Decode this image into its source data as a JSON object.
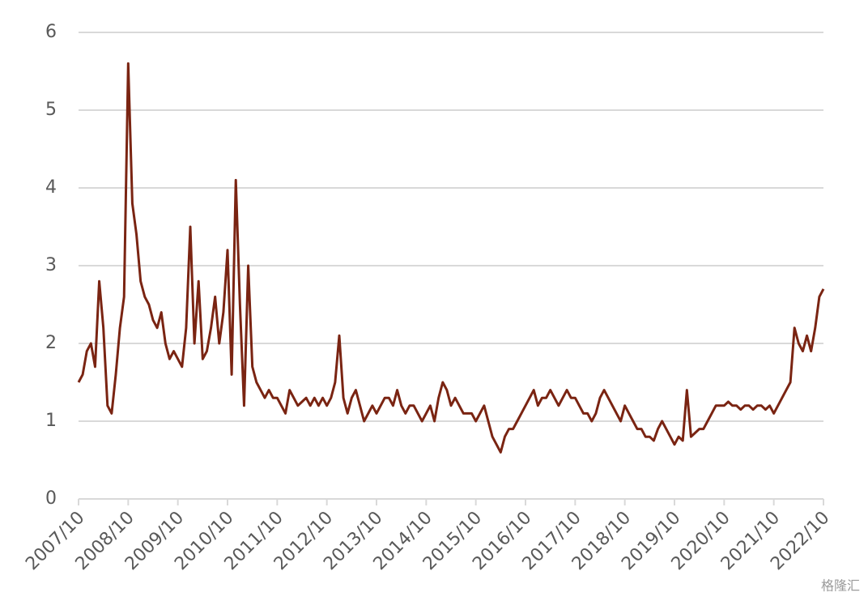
{
  "chart_data": {
    "type": "line",
    "x": [
      "2007/10",
      "2007/11",
      "2007/12",
      "2008/01",
      "2008/02",
      "2008/03",
      "2008/04",
      "2008/05",
      "2008/06",
      "2008/07",
      "2008/08",
      "2008/09",
      "2008/10",
      "2008/11",
      "2008/12",
      "2009/01",
      "2009/02",
      "2009/03",
      "2009/04",
      "2009/05",
      "2009/06",
      "2009/07",
      "2009/08",
      "2009/09",
      "2009/10",
      "2009/11",
      "2009/12",
      "2010/01",
      "2010/02",
      "2010/03",
      "2010/04",
      "2010/05",
      "2010/06",
      "2010/07",
      "2010/08",
      "2010/09",
      "2010/10",
      "2010/11",
      "2010/12",
      "2011/01",
      "2011/02",
      "2011/03",
      "2011/04",
      "2011/05",
      "2011/06",
      "2011/07",
      "2011/08",
      "2011/09",
      "2011/10",
      "2011/11",
      "2011/12",
      "2012/01",
      "2012/02",
      "2012/03",
      "2012/04",
      "2012/05",
      "2012/06",
      "2012/07",
      "2012/08",
      "2012/09",
      "2012/10",
      "2012/11",
      "2012/12",
      "2013/01",
      "2013/02",
      "2013/03",
      "2013/04",
      "2013/05",
      "2013/06",
      "2013/07",
      "2013/08",
      "2013/09",
      "2013/10",
      "2013/11",
      "2013/12",
      "2014/01",
      "2014/02",
      "2014/03",
      "2014/04",
      "2014/05",
      "2014/06",
      "2014/07",
      "2014/08",
      "2014/09",
      "2014/10",
      "2014/11",
      "2014/12",
      "2015/01",
      "2015/02",
      "2015/03",
      "2015/04",
      "2015/05",
      "2015/06",
      "2015/07",
      "2015/08",
      "2015/09",
      "2015/10",
      "2015/11",
      "2015/12",
      "2016/01",
      "2016/02",
      "2016/03",
      "2016/04",
      "2016/05",
      "2016/06",
      "2016/07",
      "2016/08",
      "2016/09",
      "2016/10",
      "2016/11",
      "2016/12",
      "2017/01",
      "2017/02",
      "2017/03",
      "2017/04",
      "2017/05",
      "2017/06",
      "2017/07",
      "2017/08",
      "2017/09",
      "2017/10",
      "2017/11",
      "2017/12",
      "2018/01",
      "2018/02",
      "2018/03",
      "2018/04",
      "2018/05",
      "2018/06",
      "2018/07",
      "2018/08",
      "2018/09",
      "2018/10",
      "2018/11",
      "2018/12",
      "2019/01",
      "2019/02",
      "2019/03",
      "2019/04",
      "2019/05",
      "2019/06",
      "2019/07",
      "2019/08",
      "2019/09",
      "2019/10",
      "2019/11",
      "2019/12",
      "2020/01",
      "2020/02",
      "2020/03",
      "2020/04",
      "2020/05",
      "2020/06",
      "2020/07",
      "2020/08",
      "2020/09",
      "2020/10",
      "2020/11",
      "2020/12",
      "2021/01",
      "2021/02",
      "2021/03",
      "2021/04",
      "2021/05",
      "2021/06",
      "2021/07",
      "2021/08",
      "2021/09",
      "2021/10",
      "2021/11",
      "2021/12",
      "2022/01",
      "2022/02",
      "2022/03",
      "2022/04",
      "2022/05",
      "2022/06",
      "2022/07",
      "2022/08",
      "2022/09",
      "2022/10"
    ],
    "values": [
      1.5,
      1.6,
      1.9,
      2.0,
      1.7,
      2.8,
      2.2,
      1.2,
      1.1,
      1.6,
      2.2,
      2.6,
      5.6,
      3.8,
      3.4,
      2.8,
      2.6,
      2.5,
      2.3,
      2.2,
      2.4,
      2.0,
      1.8,
      1.9,
      1.8,
      1.7,
      2.2,
      3.5,
      2.0,
      2.8,
      1.8,
      1.9,
      2.2,
      2.6,
      2.0,
      2.4,
      3.2,
      1.6,
      4.1,
      2.5,
      1.2,
      3.0,
      1.7,
      1.5,
      1.4,
      1.3,
      1.4,
      1.3,
      1.3,
      1.2,
      1.1,
      1.4,
      1.3,
      1.2,
      1.25,
      1.3,
      1.2,
      1.3,
      1.2,
      1.3,
      1.2,
      1.3,
      1.5,
      2.1,
      1.3,
      1.1,
      1.3,
      1.4,
      1.2,
      1.0,
      1.1,
      1.2,
      1.1,
      1.2,
      1.3,
      1.3,
      1.2,
      1.4,
      1.2,
      1.1,
      1.2,
      1.2,
      1.1,
      1.0,
      1.1,
      1.2,
      1.0,
      1.3,
      1.5,
      1.4,
      1.2,
      1.3,
      1.2,
      1.1,
      1.1,
      1.1,
      1.0,
      1.1,
      1.2,
      1.0,
      0.8,
      0.7,
      0.6,
      0.8,
      0.9,
      0.9,
      1.0,
      1.1,
      1.2,
      1.3,
      1.4,
      1.2,
      1.3,
      1.3,
      1.4,
      1.3,
      1.2,
      1.3,
      1.4,
      1.3,
      1.3,
      1.2,
      1.1,
      1.1,
      1.0,
      1.1,
      1.3,
      1.4,
      1.3,
      1.2,
      1.1,
      1.0,
      1.2,
      1.1,
      1.0,
      0.9,
      0.9,
      0.8,
      0.8,
      0.75,
      0.9,
      1.0,
      0.9,
      0.8,
      0.7,
      0.8,
      0.75,
      1.4,
      0.8,
      0.85,
      0.9,
      0.9,
      1.0,
      1.1,
      1.2,
      1.2,
      1.2,
      1.25,
      1.2,
      1.2,
      1.15,
      1.2,
      1.2,
      1.15,
      1.2,
      1.2,
      1.15,
      1.2,
      1.1,
      1.2,
      1.3,
      1.4,
      1.5,
      2.2,
      2.0,
      1.9,
      2.1,
      1.9,
      2.2,
      2.6,
      2.7
    ],
    "color": "#7a2412",
    "xlim": [
      "2007/10",
      "2022/10"
    ],
    "xticks": [
      "2007/10",
      "2008/10",
      "2009/10",
      "2010/10",
      "2011/10",
      "2012/10",
      "2013/10",
      "2014/10",
      "2015/10",
      "2016/10",
      "2017/10",
      "2018/10",
      "2019/10",
      "2020/10",
      "2021/10",
      "2022/10"
    ],
    "ylim": [
      0,
      6
    ],
    "yticks": [
      0,
      1,
      2,
      3,
      4,
      5,
      6
    ],
    "grid": true,
    "watermark": "格隆汇"
  }
}
